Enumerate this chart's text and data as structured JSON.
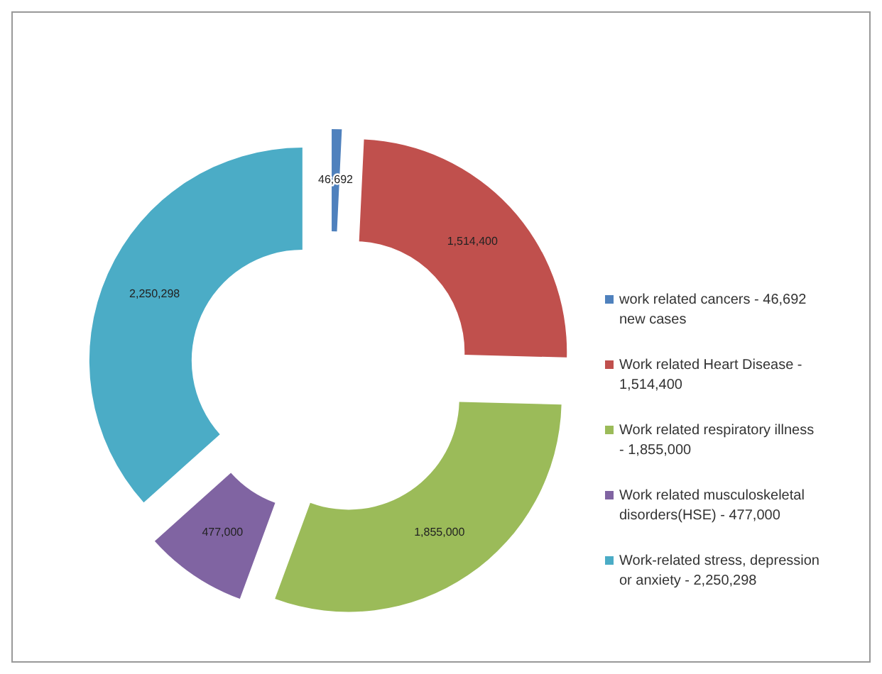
{
  "chart_data": {
    "type": "donut",
    "categories": [
      "work related cancers - 46,692 new cases",
      "Work related Heart Disease - 1,514,400",
      "Work related respiratory illness - 1,855,000",
      "Work related musculoskeletal disorders(HSE) - 477,000",
      "Work-related stress, depression or anxiety - 2,250,298"
    ],
    "values": [
      46692,
      1514400,
      1855000,
      477000,
      2250298
    ],
    "colors": [
      "#4f81bd",
      "#c0504d",
      "#9bbb59",
      "#8064a2",
      "#4bacc6"
    ],
    "value_labels": [
      "46,692",
      "1,514,400",
      "1,855,000",
      "477,000",
      "2,250,298"
    ],
    "legend": "right"
  }
}
